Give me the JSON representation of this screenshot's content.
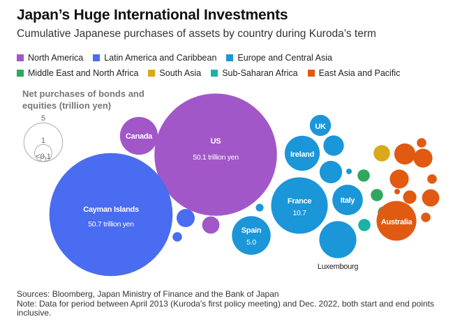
{
  "title": "Japan’s Huge International Investments",
  "subtitle": "Cumulative Japanese purchases of assets by country during Kuroda’s term",
  "legend": [
    {
      "label": "North America",
      "color": "#a257c8"
    },
    {
      "label": "Latin America and Caribbean",
      "color": "#4a6cf0"
    },
    {
      "label": "Europe and Central Asia",
      "color": "#1b96d8"
    },
    {
      "label": "Middle East and North Africa",
      "color": "#2ea85c"
    },
    {
      "label": "South Asia",
      "color": "#d9a91a"
    },
    {
      "label": "Sub-Saharan Africa",
      "color": "#19b3a2"
    },
    {
      "label": "East Asia and Pacific",
      "color": "#e05a12"
    }
  ],
  "size_legend": {
    "title_line1": "Net purchases of bonds and",
    "title_line2": "equities (trillion yen)",
    "labels": [
      "5",
      "1",
      "<0.1"
    ]
  },
  "chart_data": {
    "type": "bubble",
    "unit": "trillion yen",
    "bubbles": [
      {
        "name": "US",
        "region": "North America",
        "value": 50.1,
        "label": "US",
        "sublabel": "50.1 trillion yen"
      },
      {
        "name": "Canada",
        "region": "North America",
        "value": 4.8,
        "label": "Canada"
      },
      {
        "name": "Unlabeled",
        "region": "North America",
        "value": 1.0
      },
      {
        "name": "Cayman Islands",
        "region": "Latin America and Caribbean",
        "value": 50.7,
        "label": "Cayman Islands",
        "sublabel": "50.7 trillion yen"
      },
      {
        "name": "Unlabeled",
        "region": "Latin America and Caribbean",
        "value": 1.1
      },
      {
        "name": "Unlabeled",
        "region": "Latin America and Caribbean",
        "value": 0.3
      },
      {
        "name": "France",
        "region": "Europe and Central Asia",
        "value": 10.7,
        "label": "France",
        "sublabel": "10.7"
      },
      {
        "name": "Spain",
        "region": "Europe and Central Asia",
        "value": 5.0,
        "label": "Spain",
        "sublabel": "5.0"
      },
      {
        "name": "Ireland",
        "region": "Europe and Central Asia",
        "value": 4.1,
        "label": "Ireland"
      },
      {
        "name": "Luxembourg",
        "region": "Europe and Central Asia",
        "value": 4.6,
        "label": "Luxembourg"
      },
      {
        "name": "Italy",
        "region": "Europe and Central Asia",
        "value": 3.1,
        "label": "Italy"
      },
      {
        "name": "UK",
        "region": "Europe and Central Asia",
        "value": 1.5,
        "label": "UK"
      },
      {
        "name": "Unlabeled",
        "region": "Europe and Central Asia",
        "value": 1.4
      },
      {
        "name": "Unlabeled",
        "region": "Europe and Central Asia",
        "value": 1.7
      },
      {
        "name": "Unlabeled",
        "region": "Europe and Central Asia",
        "value": 0.1
      },
      {
        "name": "Unlabeled",
        "region": "Europe and Central Asia",
        "value": 0.2
      },
      {
        "name": "Unlabeled",
        "region": "Middle East and North Africa",
        "value": 0.5
      },
      {
        "name": "Unlabeled",
        "region": "Middle East and North Africa",
        "value": 0.5
      },
      {
        "name": "Unlabeled",
        "region": "Middle East and North Africa",
        "value": 0.5
      },
      {
        "name": "Unlabeled",
        "region": "South Asia",
        "value": 0.9
      },
      {
        "name": "Unlabeled",
        "region": "Sub-Saharan Africa",
        "value": 0.5
      },
      {
        "name": "Australia",
        "region": "East Asia and Pacific",
        "value": 5.3,
        "label": "Australia"
      },
      {
        "name": "Unlabeled",
        "region": "East Asia and Pacific",
        "value": 1.5
      },
      {
        "name": "Unlabeled",
        "region": "East Asia and Pacific",
        "value": 1.2
      },
      {
        "name": "Unlabeled",
        "region": "East Asia and Pacific",
        "value": 1.2
      },
      {
        "name": "Unlabeled",
        "region": "East Asia and Pacific",
        "value": 1.0
      },
      {
        "name": "Unlabeled",
        "region": "East Asia and Pacific",
        "value": 0.6
      },
      {
        "name": "Unlabeled",
        "region": "East Asia and Pacific",
        "value": 0.3
      },
      {
        "name": "Unlabeled",
        "region": "East Asia and Pacific",
        "value": 0.3
      },
      {
        "name": "Unlabeled",
        "region": "East Asia and Pacific",
        "value": 0.3
      },
      {
        "name": "Unlabeled",
        "region": "East Asia and Pacific",
        "value": 0.1
      }
    ]
  },
  "footer": {
    "sources": "Sources: Bloomberg, Japan Ministry of Finance and the Bank of Japan",
    "note": "Note: Data for period between April 2013 (Kuroda's first policy meeting) and Dec. 2022, both start and end points inclusive."
  }
}
